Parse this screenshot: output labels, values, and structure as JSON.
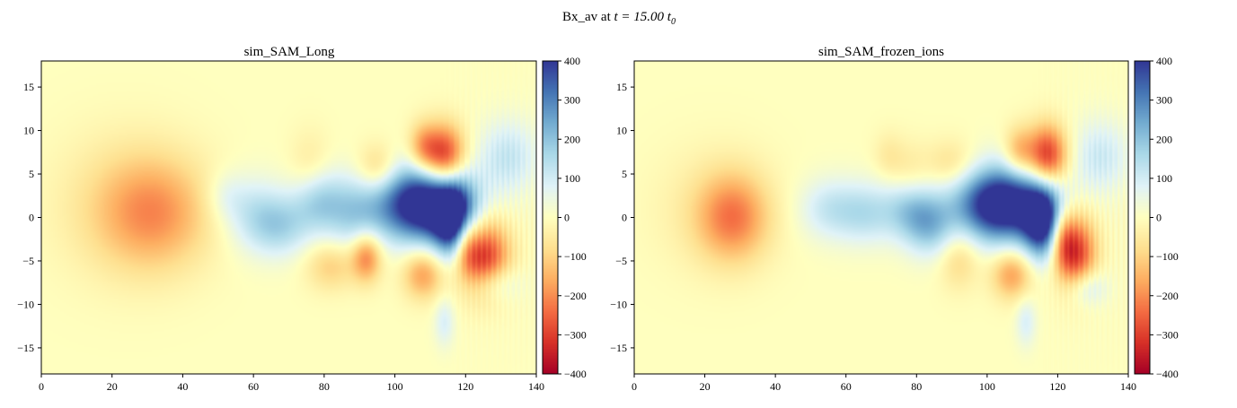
{
  "figure": {
    "suptitle_prefix": "Bx_av at ",
    "suptitle_math": "t = 15.00 t",
    "suptitle_sub": "0"
  },
  "colormap": {
    "name": "RdYlBu",
    "stops": [
      "#a50026",
      "#d73027",
      "#f46d43",
      "#fdae61",
      "#fee090",
      "#ffffbf",
      "#e0f3f8",
      "#abd9e9",
      "#74add1",
      "#4575b4",
      "#313695"
    ]
  },
  "chart_data": [
    {
      "type": "heatmap",
      "title": "sim_SAM_Long",
      "xlabel": "",
      "ylabel": "",
      "xlim": [
        0,
        140
      ],
      "ylim": [
        -18,
        18
      ],
      "xticks": [
        0,
        20,
        40,
        60,
        80,
        100,
        120,
        140
      ],
      "yticks": [
        -15,
        -10,
        -5,
        0,
        5,
        10,
        15
      ],
      "colorbar": {
        "vmin": -400,
        "vmax": 400,
        "ticks": [
          400,
          300,
          200,
          100,
          0,
          -100,
          -200,
          -300,
          -400
        ]
      },
      "features": [
        {
          "x": 32,
          "y": 0.5,
          "sx": 11,
          "sy": 4.5,
          "value": -170
        },
        {
          "x": 22,
          "y": 1.5,
          "sx": 14,
          "sy": 6,
          "value": -55
        },
        {
          "x": 60,
          "y": 0.5,
          "sx": 6,
          "sy": 3,
          "value": 110
        },
        {
          "x": 68,
          "y": -1.0,
          "sx": 6,
          "sy": 2.5,
          "value": 140
        },
        {
          "x": 78,
          "y": 2.0,
          "sx": 5,
          "sy": 2.5,
          "value": 150
        },
        {
          "x": 88,
          "y": 0.5,
          "sx": 6,
          "sy": 3,
          "value": 150
        },
        {
          "x": 108,
          "y": 1.5,
          "sx": 9,
          "sy": 3,
          "value": 520
        },
        {
          "x": 117,
          "y": -0.5,
          "sx": 4,
          "sy": 3,
          "value": 420
        },
        {
          "x": 114,
          "y": 7.0,
          "sx": 4,
          "sy": 2.5,
          "value": -330
        },
        {
          "x": 108,
          "y": 8.0,
          "sx": 3,
          "sy": 2,
          "value": -160
        },
        {
          "x": 125,
          "y": -4.5,
          "sx": 5,
          "sy": 3,
          "value": -330
        },
        {
          "x": 120,
          "y": -2.5,
          "sx": 2.5,
          "sy": 2.5,
          "value": -200
        },
        {
          "x": 92,
          "y": -4.5,
          "sx": 3,
          "sy": 2,
          "value": -220
        },
        {
          "x": 108,
          "y": -6.5,
          "sx": 4,
          "sy": 2,
          "value": -180
        },
        {
          "x": 132,
          "y": 7.0,
          "sx": 6,
          "sy": 3,
          "value": 120
        },
        {
          "x": 128,
          "y": -7.5,
          "sx": 5,
          "sy": 1.5,
          "value": 110
        },
        {
          "x": 114,
          "y": -12.0,
          "sx": 2,
          "sy": 2,
          "value": 90
        },
        {
          "x": 82,
          "y": -5.5,
          "sx": 5,
          "sy": 2,
          "value": -110
        },
        {
          "x": 76,
          "y": 5.5,
          "sx": 4,
          "sy": 3,
          "value": -60
        },
        {
          "x": 95,
          "y": 5.5,
          "sx": 4,
          "sy": 2,
          "value": -120
        },
        {
          "x": 52,
          "y": 2.5,
          "sx": 4,
          "sy": 2,
          "value": 60
        }
      ]
    },
    {
      "type": "heatmap",
      "title": "sim_SAM_frozen_ions",
      "xlabel": "",
      "ylabel": "",
      "xlim": [
        0,
        140
      ],
      "ylim": [
        -18,
        18
      ],
      "xticks": [
        0,
        20,
        40,
        60,
        80,
        100,
        120,
        140
      ],
      "yticks": [
        -15,
        -10,
        -5,
        0,
        5,
        10,
        15
      ],
      "colorbar": {
        "vmin": -400,
        "vmax": 400,
        "ticks": [
          400,
          300,
          200,
          100,
          0,
          -100,
          -200,
          -300,
          -400
        ]
      },
      "features": [
        {
          "x": 28,
          "y": 0.0,
          "sx": 7,
          "sy": 3.5,
          "value": -200
        },
        {
          "x": 22,
          "y": 1.0,
          "sx": 12,
          "sy": 5,
          "value": -45
        },
        {
          "x": 55,
          "y": 1.0,
          "sx": 6,
          "sy": 2.5,
          "value": 110
        },
        {
          "x": 66,
          "y": 0.5,
          "sx": 6,
          "sy": 2.5,
          "value": 130
        },
        {
          "x": 78,
          "y": 1.0,
          "sx": 5,
          "sy": 2.5,
          "value": 150
        },
        {
          "x": 84,
          "y": -1.0,
          "sx": 5,
          "sy": 2.5,
          "value": 170
        },
        {
          "x": 104,
          "y": 1.5,
          "sx": 9,
          "sy": 3,
          "value": 520
        },
        {
          "x": 116,
          "y": -0.5,
          "sx": 4,
          "sy": 3,
          "value": 420
        },
        {
          "x": 117,
          "y": 7.0,
          "sx": 4,
          "sy": 2.5,
          "value": -330
        },
        {
          "x": 109,
          "y": 7.5,
          "sx": 3,
          "sy": 2,
          "value": -150
        },
        {
          "x": 125,
          "y": -4.0,
          "sx": 4,
          "sy": 3,
          "value": -320
        },
        {
          "x": 121,
          "y": -2.0,
          "sx": 2.5,
          "sy": 2.5,
          "value": -200
        },
        {
          "x": 92,
          "y": -4.5,
          "sx": 4,
          "sy": 2.5,
          "value": -100
        },
        {
          "x": 107,
          "y": -6.5,
          "sx": 4,
          "sy": 2,
          "value": -180
        },
        {
          "x": 132,
          "y": 7.0,
          "sx": 6,
          "sy": 3,
          "value": 110
        },
        {
          "x": 128,
          "y": -8.0,
          "sx": 4,
          "sy": 1.5,
          "value": 120
        },
        {
          "x": 111,
          "y": -12.0,
          "sx": 2,
          "sy": 2,
          "value": 90
        },
        {
          "x": 78,
          "y": 5.0,
          "sx": 4,
          "sy": 2.5,
          "value": -60
        },
        {
          "x": 90,
          "y": 6.0,
          "sx": 5,
          "sy": 2,
          "value": -90
        },
        {
          "x": 72,
          "y": 7.0,
          "sx": 3,
          "sy": 2,
          "value": -50
        }
      ]
    }
  ]
}
